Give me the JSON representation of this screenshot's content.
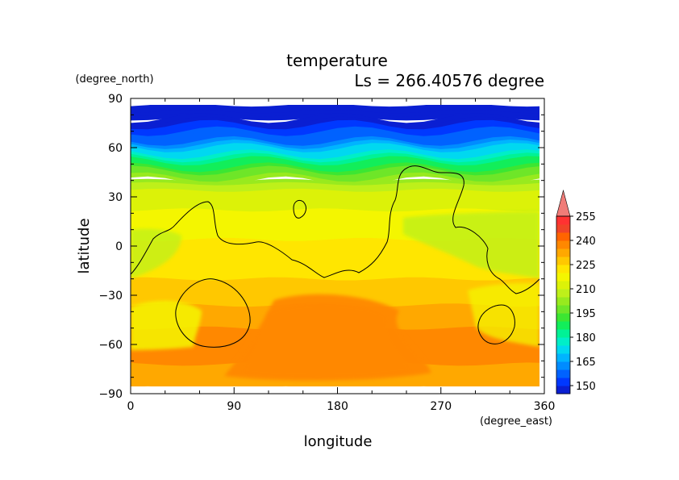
{
  "title": "temperature",
  "subtitle": "Ls = 266.40576 degree",
  "chart_data": {
    "type": "heatmap",
    "title": "temperature",
    "subtitle": "Ls = 266.40576 degree",
    "xlabel": "longitude",
    "ylabel": "latitude",
    "x_unit": "(degree_east)",
    "y_unit": "(degree_north)",
    "xlim": [
      0,
      360
    ],
    "ylim": [
      -90,
      90
    ],
    "x_ticks": [
      0,
      90,
      180,
      270,
      360
    ],
    "y_ticks": [
      -90,
      -60,
      -30,
      0,
      30,
      60,
      90
    ],
    "x_tick_labels": [
      "0",
      "90",
      "180",
      "270",
      "360"
    ],
    "y_tick_labels": [
      "−90",
      "−60",
      "−30",
      "0",
      "30",
      "60",
      "90"
    ],
    "colorbar": {
      "levels": [
        145,
        150,
        155,
        160,
        165,
        170,
        175,
        180,
        185,
        190,
        195,
        200,
        205,
        210,
        215,
        220,
        225,
        230,
        235,
        240,
        245,
        250,
        255,
        260
      ],
      "labels": [
        "150",
        "165",
        "180",
        "195",
        "210",
        "225",
        "240",
        "255"
      ],
      "label_values": [
        150,
        165,
        180,
        195,
        210,
        225,
        240,
        255
      ],
      "colors": [
        "#0a1fd2",
        "#0038ff",
        "#0062ff",
        "#008cff",
        "#00b4ff",
        "#00d8f0",
        "#00eec8",
        "#00f296",
        "#12ee5a",
        "#3ce632",
        "#6ee628",
        "#98ea1e",
        "#bef01a",
        "#dcf208",
        "#f4f600",
        "#ffe600",
        "#ffc800",
        "#ffa800",
        "#ff8800",
        "#ff6400",
        "#f04428",
        "#ff3232",
        "#f07c78"
      ],
      "extend": "max"
    },
    "approx_zonal_mean_profile": {
      "latitude": [
        85,
        75,
        65,
        55,
        45,
        35,
        25,
        15,
        5,
        -5,
        -15,
        -25,
        -35,
        -45,
        -55,
        -65,
        -75,
        -85
      ],
      "temperature": [
        146,
        150,
        160,
        180,
        198,
        210,
        214,
        218,
        220,
        222,
        224,
        226,
        230,
        234,
        236,
        236,
        234,
        230
      ]
    },
    "contour_level": 215
  }
}
